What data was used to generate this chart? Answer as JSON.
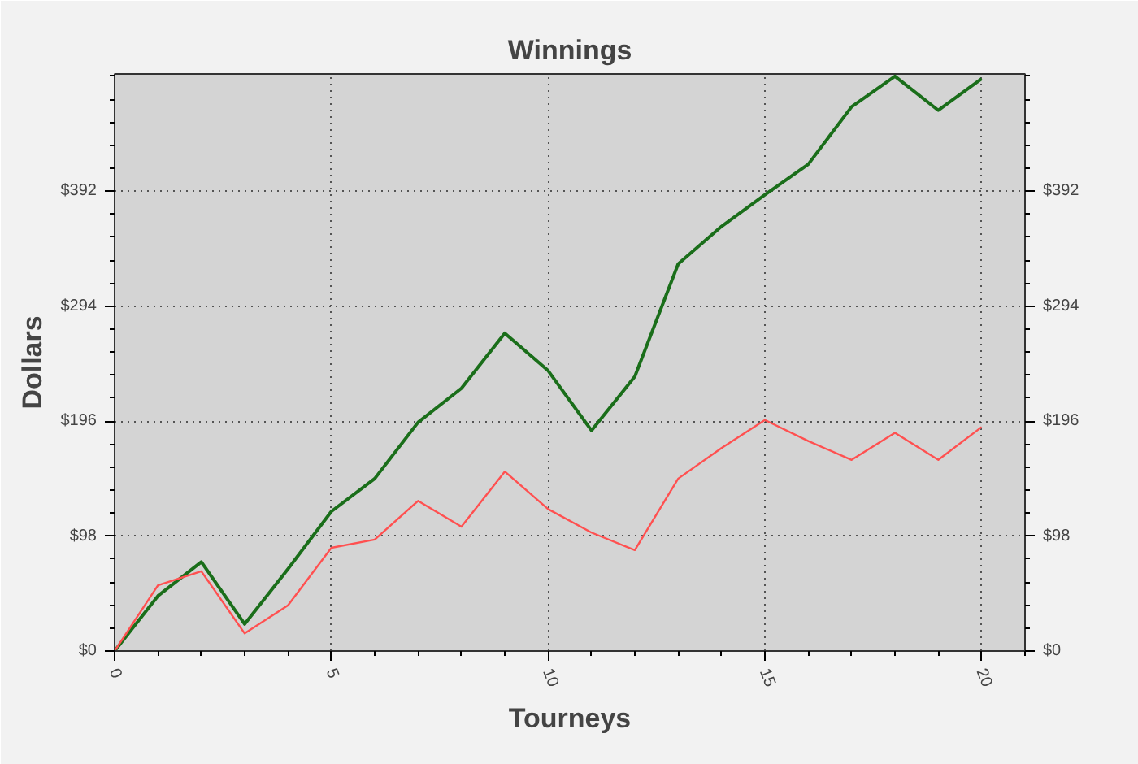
{
  "chart_data": {
    "type": "line",
    "title": "Winnings",
    "xlabel": "Tourneys",
    "ylabel": "Dollars",
    "x": [
      0,
      1,
      2,
      3,
      4,
      5,
      6,
      7,
      8,
      9,
      10,
      11,
      12,
      13,
      14,
      15,
      16,
      17,
      18,
      19,
      20
    ],
    "series": [
      {
        "color": "#1a6e1a",
        "values": [
          0,
          47,
          76,
          23,
          70,
          119,
          147,
          195,
          224,
          271,
          239,
          188,
          234,
          330,
          362,
          389,
          415,
          464,
          490,
          461,
          488
        ]
      },
      {
        "color": "#ff5050",
        "values": [
          0,
          56,
          68,
          15,
          39,
          88,
          95,
          128,
          106,
          153,
          121,
          101,
          86,
          147,
          173,
          197,
          179,
          163,
          186,
          163,
          191
        ]
      }
    ],
    "xlim": [
      0,
      21
    ],
    "xticks": [
      0,
      5,
      10,
      15,
      20
    ],
    "ylim": [
      0,
      492
    ],
    "yticks": [
      {
        "value": 0,
        "label": "$0"
      },
      {
        "value": 98,
        "label": "$98"
      },
      {
        "value": 196,
        "label": "$196"
      },
      {
        "value": 294,
        "label": "$294"
      },
      {
        "value": 392,
        "label": "$392"
      }
    ],
    "y2lim": [
      0,
      492
    ],
    "y2ticks": [
      {
        "value": 0,
        "label": "$0"
      },
      {
        "value": 98,
        "label": "$98"
      },
      {
        "value": 196,
        "label": "$196"
      },
      {
        "value": 294,
        "label": "$294"
      },
      {
        "value": 392,
        "label": "$392"
      }
    ],
    "grid": true
  }
}
